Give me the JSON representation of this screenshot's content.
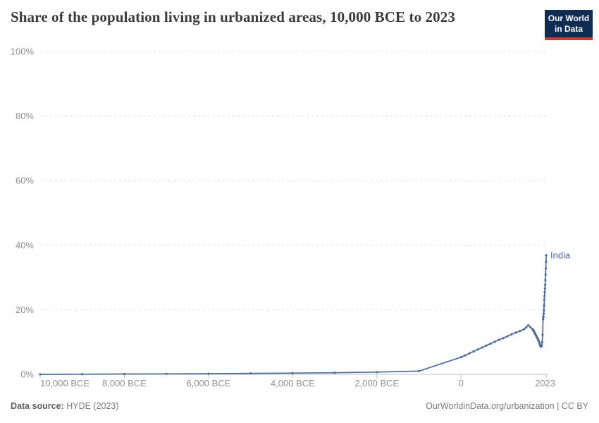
{
  "header": {
    "title": "Share of the population living in urbanized areas, 10,000 BCE to 2023",
    "logo": {
      "line1": "Our World",
      "line2": "in Data"
    }
  },
  "footer": {
    "source_label": "Data source:",
    "source_value": " HYDE (2023)",
    "attribution": "OurWorldinData.org/urbanization | CC BY"
  },
  "colors": {
    "line": "#4c6a9c",
    "title_text": "#3b3b3b",
    "axis_text": "#8f8f8f",
    "gridline": "#dedede",
    "axis_line": "#bcbcbc",
    "footer_text": "#7a7a7a",
    "footer_label_text": "#5f5f5f",
    "logo_bg": "#0f2d52",
    "logo_accent": "#cc3b2e",
    "background": "#ffffff"
  },
  "chart_data": {
    "type": "line",
    "title": "Share of the population living in urbanized areas, 10,000 BCE to 2023",
    "xlabel": "",
    "ylabel": "",
    "xlim": [
      -10000,
      2023
    ],
    "ylim": [
      0,
      100
    ],
    "grid": "horizontal-dashed",
    "legend_position": "end-of-line-label",
    "markers": true,
    "yticks": [
      {
        "value": 0,
        "label": "0%"
      },
      {
        "value": 20,
        "label": "20%"
      },
      {
        "value": 40,
        "label": "40%"
      },
      {
        "value": 60,
        "label": "60%"
      },
      {
        "value": 80,
        "label": "80%"
      },
      {
        "value": 100,
        "label": "100%"
      }
    ],
    "xticks": [
      {
        "value": -10000,
        "label": "10,000 BCE"
      },
      {
        "value": -8000,
        "label": "8,000 BCE"
      },
      {
        "value": -6000,
        "label": "6,000 BCE"
      },
      {
        "value": -4000,
        "label": "4,000 BCE"
      },
      {
        "value": -2000,
        "label": "2,000 BCE"
      },
      {
        "value": 0,
        "label": "0"
      },
      {
        "value": 2023,
        "label": "2023"
      }
    ],
    "series": [
      {
        "name": "India",
        "color": "#4c6a9c",
        "points": [
          [
            -10000,
            0
          ],
          [
            -9000,
            0.05
          ],
          [
            -8000,
            0.1
          ],
          [
            -7000,
            0.15
          ],
          [
            -6000,
            0.2
          ],
          [
            -5000,
            0.3
          ],
          [
            -4000,
            0.4
          ],
          [
            -3000,
            0.5
          ],
          [
            -2000,
            0.7
          ],
          [
            -1000,
            1.0
          ],
          [
            0,
            5.3
          ],
          [
            100,
            5.9
          ],
          [
            200,
            6.5
          ],
          [
            300,
            7.1
          ],
          [
            400,
            7.7
          ],
          [
            500,
            8.3
          ],
          [
            600,
            8.9
          ],
          [
            700,
            9.5
          ],
          [
            800,
            10.1
          ],
          [
            900,
            10.7
          ],
          [
            1000,
            11.2
          ],
          [
            1100,
            11.8
          ],
          [
            1200,
            12.4
          ],
          [
            1300,
            12.9
          ],
          [
            1400,
            13.4
          ],
          [
            1500,
            14.0
          ],
          [
            1550,
            14.6
          ],
          [
            1600,
            15.2
          ],
          [
            1650,
            14.6
          ],
          [
            1700,
            14.0
          ],
          [
            1710,
            13.8
          ],
          [
            1720,
            13.6
          ],
          [
            1730,
            13.4
          ],
          [
            1740,
            13.1
          ],
          [
            1750,
            12.9
          ],
          [
            1760,
            12.6
          ],
          [
            1770,
            12.4
          ],
          [
            1780,
            12.1
          ],
          [
            1790,
            11.9
          ],
          [
            1800,
            11.6
          ],
          [
            1810,
            11.3
          ],
          [
            1820,
            11.1
          ],
          [
            1830,
            10.8
          ],
          [
            1840,
            10.5
          ],
          [
            1850,
            10.2
          ],
          [
            1860,
            9.8
          ],
          [
            1870,
            9.4
          ],
          [
            1880,
            9.0
          ],
          [
            1890,
            8.7
          ],
          [
            1900,
            8.6
          ],
          [
            1910,
            8.7
          ],
          [
            1920,
            8.9
          ],
          [
            1930,
            10.0
          ],
          [
            1940,
            12.3
          ],
          [
            1950,
            17.0
          ],
          [
            1955,
            17.6
          ],
          [
            1960,
            17.9
          ],
          [
            1965,
            18.8
          ],
          [
            1970,
            19.8
          ],
          [
            1975,
            21.3
          ],
          [
            1980,
            23.1
          ],
          [
            1985,
            24.3
          ],
          [
            1990,
            25.5
          ],
          [
            1995,
            26.6
          ],
          [
            2000,
            27.7
          ],
          [
            2005,
            29.2
          ],
          [
            2010,
            30.9
          ],
          [
            2015,
            32.8
          ],
          [
            2020,
            34.9
          ],
          [
            2023,
            36.9
          ]
        ]
      }
    ]
  }
}
